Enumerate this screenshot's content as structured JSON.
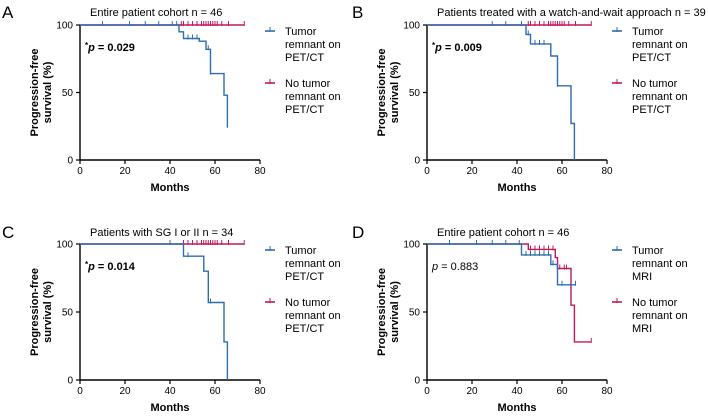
{
  "colors": {
    "tumor": "#2e6db1",
    "no_tumor": "#c2185b",
    "axis": "#000000"
  },
  "chart_data": [
    {
      "type": "line",
      "panel": "A",
      "title": "Entire patient cohort n = 46",
      "pvalue": {
        "star": "*",
        "p": "p",
        "rest": " = 0.029",
        "bold": true
      },
      "xlabel": "Months",
      "ylabel": [
        "Progression-free",
        "survival (%)"
      ],
      "xlim": [
        0,
        80
      ],
      "ylim": [
        0,
        100
      ],
      "xticks": [
        "0",
        "20",
        "40",
        "60",
        "80"
      ],
      "yticks": [
        "0",
        "50",
        "100"
      ],
      "series": [
        {
          "name": "Tumor remnant on PET/CT",
          "legend_lines": [
            "Tumor",
            "remnant on",
            "PET/CT"
          ],
          "color_key": "tumor",
          "steps": [
            [
              0,
              100
            ],
            [
              44,
              100
            ],
            [
              44,
              95
            ],
            [
              46,
              95
            ],
            [
              46,
              90
            ],
            [
              53,
              90
            ],
            [
              53,
              88
            ],
            [
              56,
              88
            ],
            [
              56,
              82
            ],
            [
              58,
              82
            ],
            [
              58,
              64
            ],
            [
              64,
              64
            ],
            [
              64,
              48
            ],
            [
              65.5,
              48
            ],
            [
              65.5,
              24
            ]
          ],
          "censors": [
            10,
            22,
            29,
            35,
            41,
            43,
            48,
            50,
            52,
            57,
            58
          ]
        },
        {
          "name": "No tumor remnant on PET/CT",
          "legend_lines": [
            "No tumor",
            "remnant on",
            "PET/CT"
          ],
          "color_key": "no_tumor",
          "steps": [
            [
              0,
              100
            ],
            [
              73,
              100
            ]
          ],
          "censors": [
            45,
            46,
            48,
            50,
            52,
            54,
            55,
            56,
            57,
            58,
            59,
            60,
            61,
            63,
            66,
            73
          ]
        }
      ]
    },
    {
      "type": "line",
      "panel": "B",
      "title": "Patients treated with a watch-and-wait approach n = 39",
      "pvalue": {
        "star": "*",
        "p": "p",
        "rest": " = 0.009",
        "bold": true
      },
      "xlabel": "Months",
      "ylabel": [
        "Progression-free",
        "survival (%)"
      ],
      "xlim": [
        0,
        80
      ],
      "ylim": [
        0,
        100
      ],
      "xticks": [
        "0",
        "20",
        "40",
        "60",
        "80"
      ],
      "yticks": [
        "0",
        "50",
        "100"
      ],
      "series": [
        {
          "name": "Tumor remnant on PET/CT",
          "legend_lines": [
            "Tumor",
            "remnant on",
            "PET/CT"
          ],
          "color_key": "tumor",
          "steps": [
            [
              0,
              100
            ],
            [
              44,
              100
            ],
            [
              44,
              93
            ],
            [
              46,
              93
            ],
            [
              46,
              86
            ],
            [
              55,
              86
            ],
            [
              55,
              77
            ],
            [
              58,
              77
            ],
            [
              58,
              55
            ],
            [
              64,
              55
            ],
            [
              64,
              27
            ],
            [
              65.5,
              27
            ],
            [
              65.5,
              0
            ]
          ],
          "censors": [
            29,
            35,
            42,
            45,
            48,
            50,
            52,
            58
          ]
        },
        {
          "name": "No tumor remnant on PET/CT",
          "legend_lines": [
            "No tumor",
            "remnant on",
            "PET/CT"
          ],
          "color_key": "no_tumor",
          "steps": [
            [
              0,
              100
            ],
            [
              73,
              100
            ]
          ],
          "censors": [
            45,
            46,
            48,
            50,
            52,
            54,
            55,
            56,
            57,
            58,
            59,
            60,
            61,
            63,
            66,
            73
          ]
        }
      ]
    },
    {
      "type": "line",
      "panel": "C",
      "title": "Patients with SG I or II n = 34",
      "pvalue": {
        "star": "*",
        "p": "p",
        "rest": " = 0.014",
        "bold": true
      },
      "xlabel": "Months",
      "ylabel": [
        "Progression-free",
        "survival (%)"
      ],
      "xlim": [
        0,
        80
      ],
      "ylim": [
        0,
        100
      ],
      "xticks": [
        "0",
        "20",
        "40",
        "60",
        "80"
      ],
      "yticks": [
        "0",
        "50",
        "100"
      ],
      "series": [
        {
          "name": "Tumor remnant on PET/CT",
          "legend_lines": [
            "Tumor",
            "remnant on",
            "PET/CT"
          ],
          "color_key": "tumor",
          "steps": [
            [
              0,
              100
            ],
            [
              46,
              100
            ],
            [
              46,
              91
            ],
            [
              55,
              91
            ],
            [
              55,
              80
            ],
            [
              57,
              80
            ],
            [
              57,
              57
            ],
            [
              64,
              57
            ],
            [
              64,
              28
            ],
            [
              65.5,
              28
            ],
            [
              65.5,
              0
            ]
          ],
          "censors": [
            40,
            48,
            58
          ]
        },
        {
          "name": "No tumor remnant on PET/CT",
          "legend_lines": [
            "No tumor",
            "remnant on",
            "PET/CT"
          ],
          "color_key": "no_tumor",
          "steps": [
            [
              0,
              100
            ],
            [
              73,
              100
            ]
          ],
          "censors": [
            46,
            48,
            50,
            52,
            54,
            55,
            56,
            57,
            58,
            59,
            60,
            61,
            63,
            66,
            73
          ]
        }
      ]
    },
    {
      "type": "line",
      "panel": "D",
      "title": "Entire patient cohort n = 46",
      "pvalue": {
        "star": "",
        "p": "p",
        "rest": " = 0.883",
        "bold": false
      },
      "xlabel": "Months",
      "ylabel": [
        "Progression-free",
        "survival (%)"
      ],
      "xlim": [
        0,
        80
      ],
      "ylim": [
        0,
        100
      ],
      "xticks": [
        "0",
        "20",
        "40",
        "60",
        "80"
      ],
      "yticks": [
        "0",
        "50",
        "100"
      ],
      "series": [
        {
          "name": "Tumor remnant on MRI",
          "legend_lines": [
            "Tumor",
            "remnant on",
            "MRI"
          ],
          "color_key": "tumor",
          "steps": [
            [
              0,
              100
            ],
            [
              42,
              100
            ],
            [
              42,
              92
            ],
            [
              55,
              92
            ],
            [
              55,
              85
            ],
            [
              58,
              85
            ],
            [
              58,
              70
            ],
            [
              66,
              70
            ]
          ],
          "censors": [
            10,
            22,
            29,
            35,
            41,
            44,
            46,
            48,
            50,
            52,
            54,
            56,
            60,
            66
          ]
        },
        {
          "name": "No tumor remnant on MRI",
          "legend_lines": [
            "No tumor",
            "remnant on",
            "MRI"
          ],
          "color_key": "no_tumor",
          "steps": [
            [
              0,
              100
            ],
            [
              45,
              100
            ],
            [
              45,
              96
            ],
            [
              57,
              96
            ],
            [
              57,
              90
            ],
            [
              58,
              90
            ],
            [
              58,
              82
            ],
            [
              64,
              82
            ],
            [
              64,
              55
            ],
            [
              65.5,
              55
            ],
            [
              65.5,
              28
            ],
            [
              73,
              28
            ]
          ],
          "censors": [
            46,
            48,
            50,
            52,
            54,
            56,
            59,
            61,
            62,
            73
          ]
        }
      ]
    }
  ]
}
